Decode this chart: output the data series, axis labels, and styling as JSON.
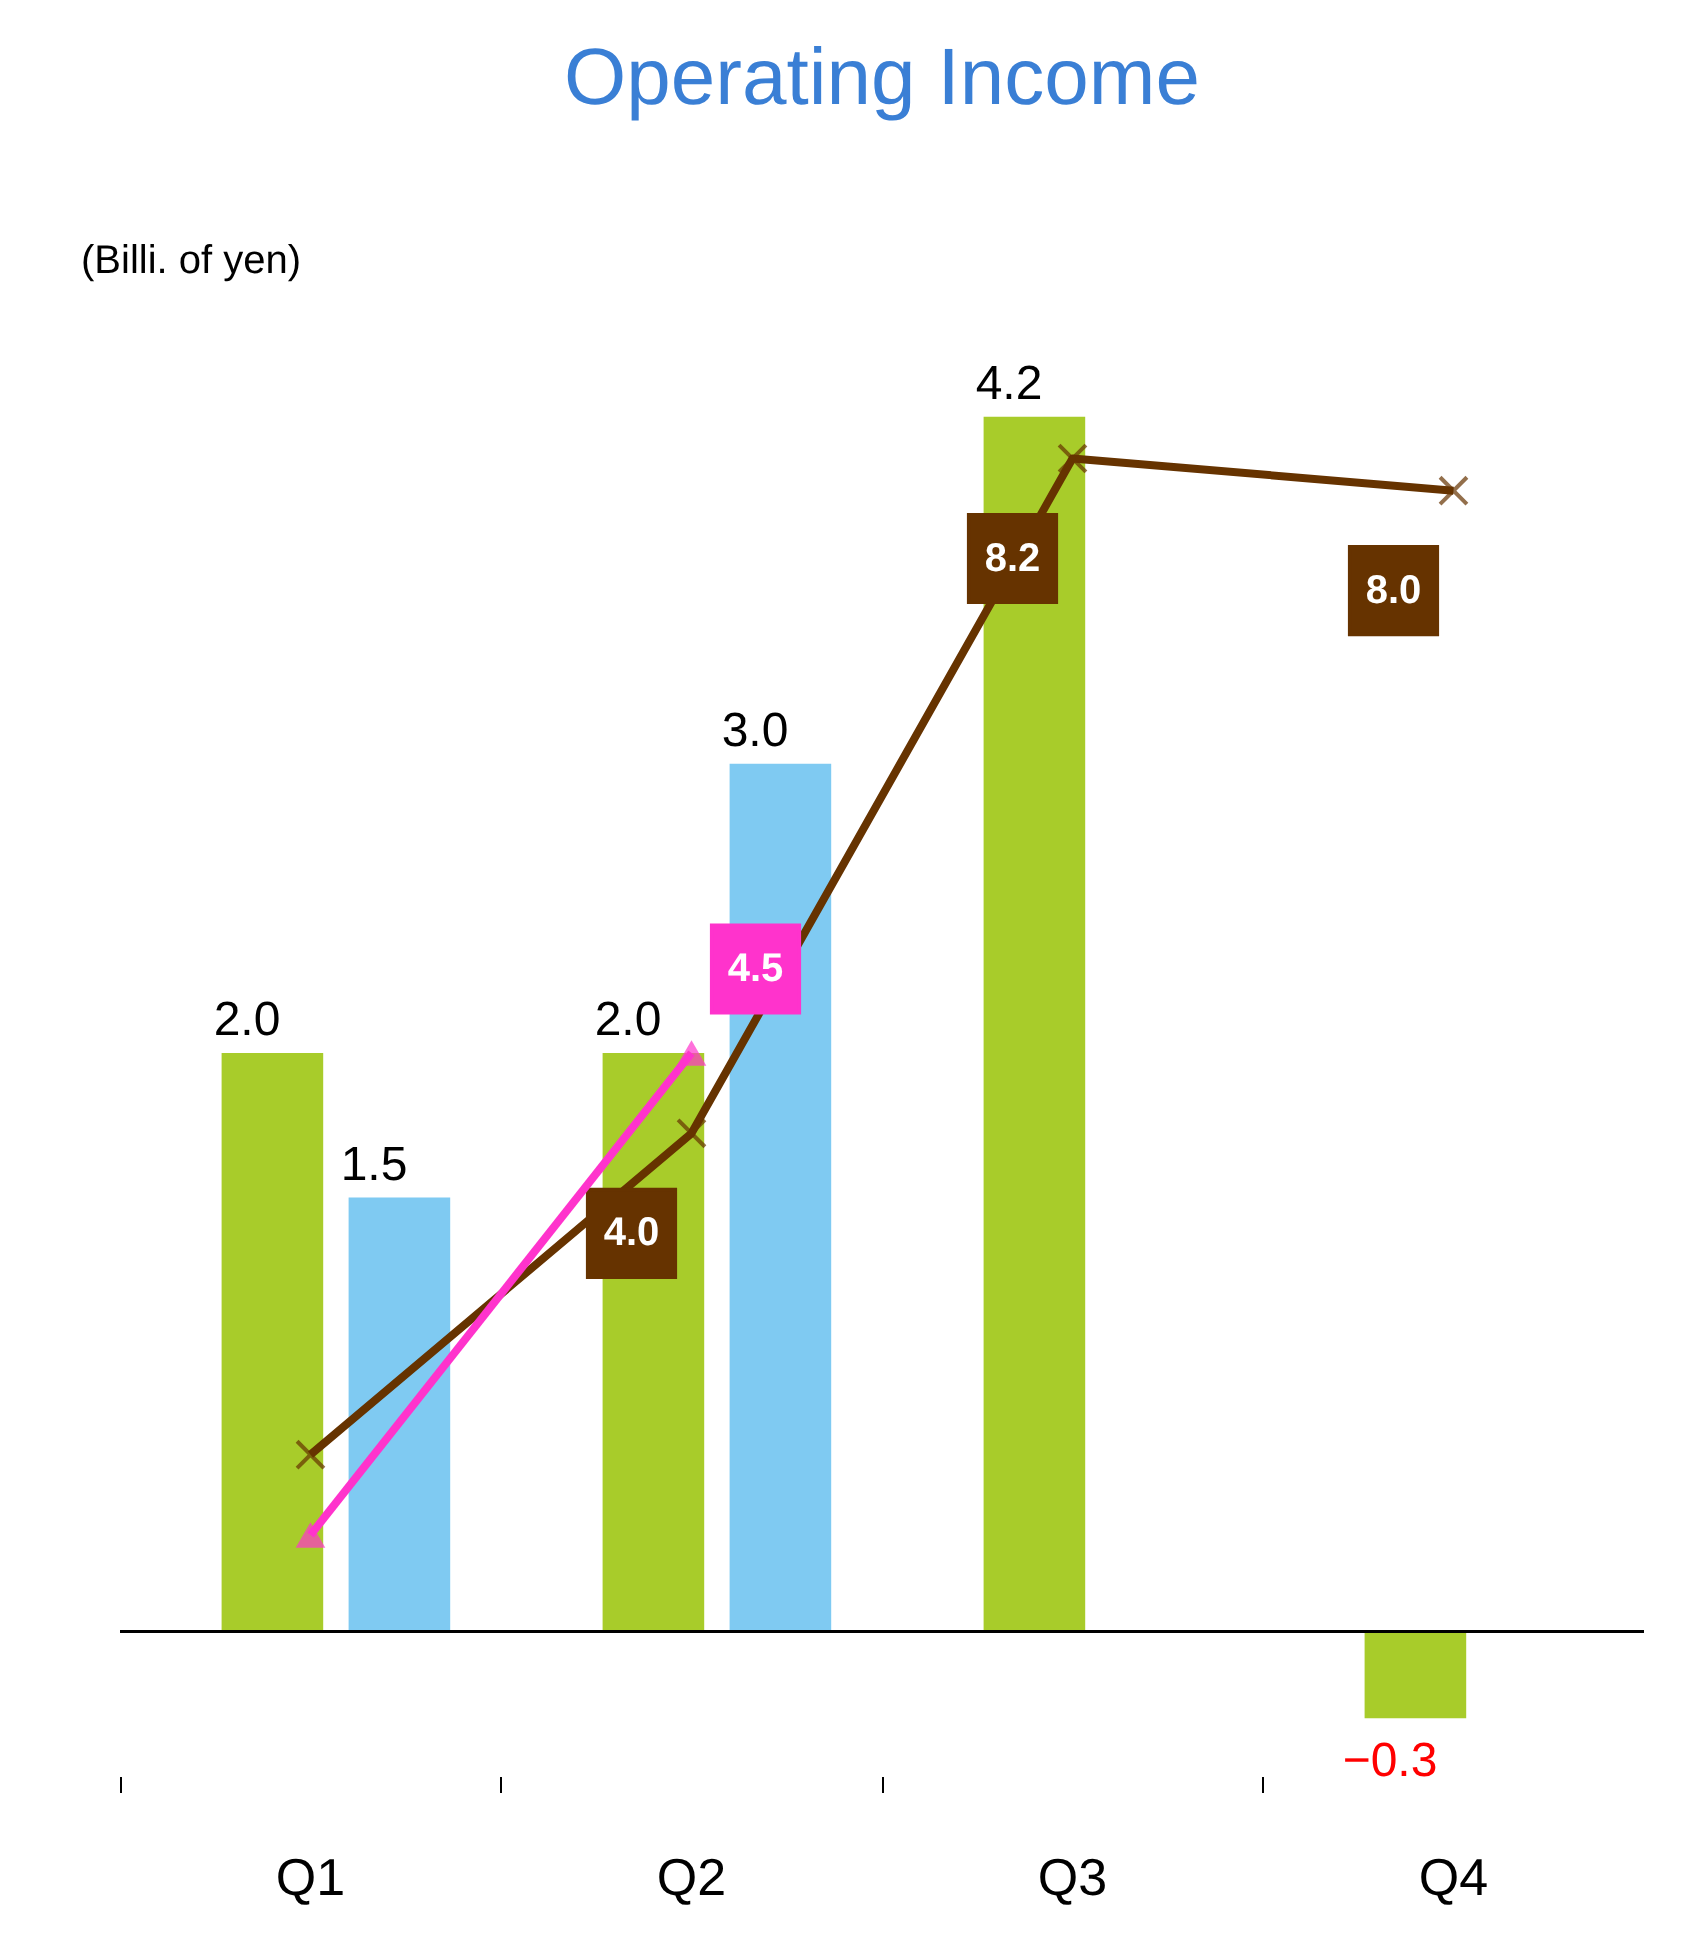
{
  "chart_data": {
    "type": "bar",
    "title": "Operating Income",
    "ylabel": "(Billi. of yen)",
    "categories": [
      "Q1",
      "Q2",
      "Q3",
      "Q4"
    ],
    "series": [
      {
        "color": "#a8cc2a",
        "values": [
          2.0,
          2.0,
          4.2,
          -0.3
        ],
        "value_labels": [
          "2.0",
          "2.0",
          "4.2",
          "−0.3"
        ]
      },
      {
        "color": "#7fcaf2",
        "values": [
          1.5,
          3.0,
          null,
          null
        ],
        "value_labels": [
          "1.5",
          "3.0",
          null,
          null
        ]
      },
      {
        "type": "line",
        "axis": "y2",
        "color": "#663300",
        "marker": "cross",
        "values": [
          2.0,
          4.0,
          8.2,
          8.0
        ],
        "value_labels": [
          null,
          "4.0",
          "8.2",
          "8.0"
        ]
      },
      {
        "type": "line",
        "axis": "y2",
        "color": "#ff33cc",
        "marker": "triangle",
        "values": [
          1.5,
          4.5,
          null,
          null
        ],
        "value_labels": [
          null,
          "4.5",
          null,
          null
        ]
      }
    ],
    "tick_labels": "x",
    "grid": false,
    "ref_lines": [
      {
        "axis": "y",
        "value": 0,
        "color": "#000000"
      }
    ]
  }
}
